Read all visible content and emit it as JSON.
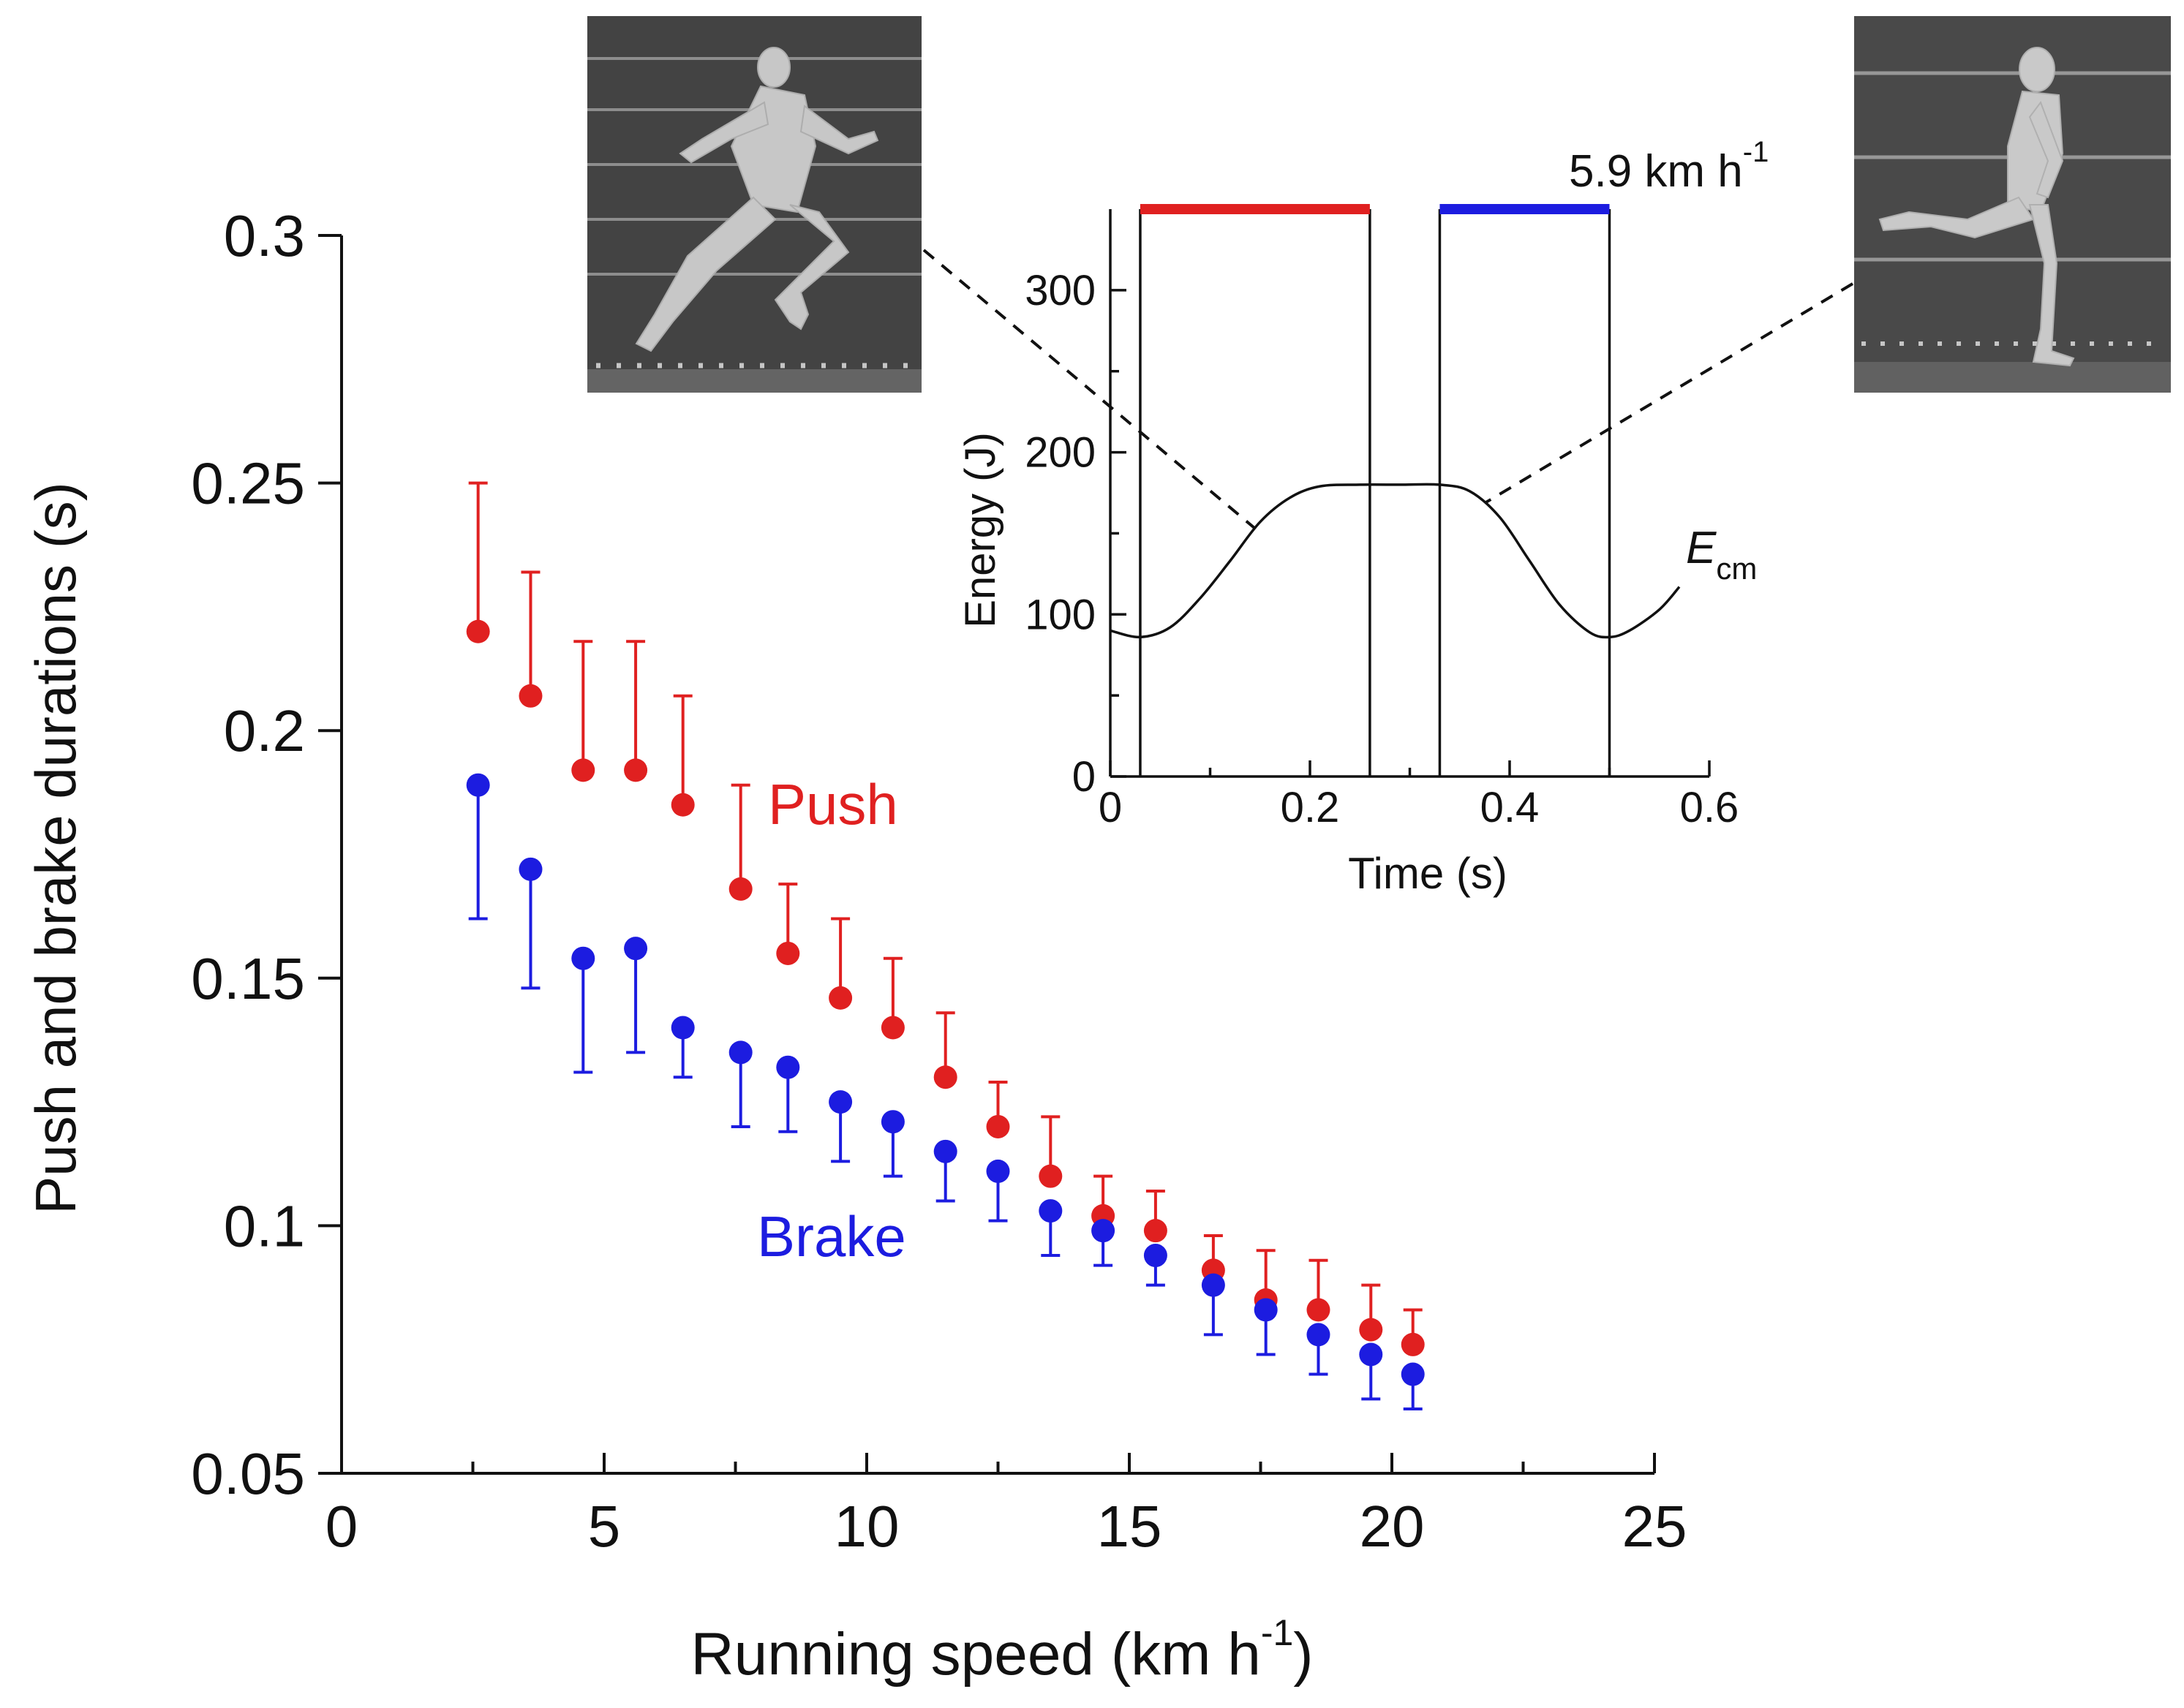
{
  "chart_data": [
    {
      "type": "scatter",
      "role": "main",
      "xlabel": "Running speed (km h",
      "xlabel_sup": "-1",
      "xlabel_close": ")",
      "ylabel": "Push and brake durations (s)",
      "xlim": [
        0,
        25
      ],
      "ylim": [
        0.05,
        0.3
      ],
      "xticks": [
        0,
        5,
        10,
        15,
        20,
        25
      ],
      "xtick_labels": [
        "0",
        "5",
        "10",
        "15",
        "20",
        "25"
      ],
      "yticks": [
        0.05,
        0.1,
        0.15,
        0.2,
        0.25,
        0.3
      ],
      "ytick_labels": [
        "0.05",
        "0.1",
        "0.15",
        "0.2",
        "0.25",
        "0.3"
      ],
      "x": [
        2.6,
        3.6,
        4.6,
        5.6,
        6.5,
        7.6,
        8.5,
        9.5,
        10.5,
        11.5,
        12.5,
        13.5,
        14.5,
        15.5,
        16.6,
        17.6,
        18.6,
        19.6,
        20.4
      ],
      "series": [
        {
          "name": "Push",
          "color": "#e02020",
          "error_direction": "up",
          "values": [
            0.22,
            0.207,
            0.192,
            0.192,
            0.185,
            0.168,
            0.155,
            0.146,
            0.14,
            0.13,
            0.12,
            0.11,
            0.102,
            0.099,
            0.091,
            0.085,
            0.083,
            0.079,
            0.076
          ],
          "errors": [
            0.03,
            0.025,
            0.026,
            0.026,
            0.022,
            0.021,
            0.014,
            0.016,
            0.014,
            0.013,
            0.009,
            0.012,
            0.008,
            0.008,
            0.007,
            0.01,
            0.01,
            0.009,
            0.007
          ]
        },
        {
          "name": "Brake",
          "color": "#1c1ce0",
          "error_direction": "down",
          "values": [
            0.189,
            0.172,
            0.154,
            0.156,
            0.14,
            0.135,
            0.132,
            0.125,
            0.121,
            0.115,
            0.111,
            0.103,
            0.099,
            0.094,
            0.088,
            0.083,
            0.078,
            0.074,
            0.07
          ],
          "errors": [
            0.027,
            0.024,
            0.023,
            0.021,
            0.01,
            0.015,
            0.013,
            0.012,
            0.011,
            0.01,
            0.01,
            0.009,
            0.007,
            0.006,
            0.01,
            0.009,
            0.008,
            0.009,
            0.007
          ]
        }
      ],
      "annotations": [
        {
          "text": "Push",
          "color": "#e02020"
        },
        {
          "text": "Brake",
          "color": "#1c1ce0"
        }
      ]
    },
    {
      "type": "line",
      "role": "inset",
      "title": "5.9 km h",
      "title_sup": "-1",
      "xlabel": "Time (s)",
      "ylabel": "Energy (J)",
      "xlim": [
        0,
        0.6
      ],
      "ylim": [
        0,
        350
      ],
      "xticks": [
        0,
        0.2,
        0.4,
        0.6
      ],
      "xtick_labels": [
        "0",
        "0.2",
        "0.4",
        "0.6"
      ],
      "yticks": [
        0,
        100,
        200,
        300
      ],
      "ytick_labels": [
        "0",
        "100",
        "200",
        "300"
      ],
      "series_label": "E",
      "series_label_sub": "cm",
      "curve": {
        "x": [
          0,
          0.03,
          0.06,
          0.09,
          0.12,
          0.15,
          0.18,
          0.21,
          0.25,
          0.29,
          0.33,
          0.36,
          0.39,
          0.42,
          0.45,
          0.48,
          0.5,
          0.52,
          0.55,
          0.57
        ],
        "y": [
          90,
          86,
          92,
          110,
          133,
          157,
          172,
          179,
          180,
          180,
          180,
          176,
          160,
          133,
          106,
          89,
          86,
          90,
          103,
          117
        ]
      },
      "push_interval": [
        0.03,
        0.26
      ],
      "brake_interval": [
        0.33,
        0.5
      ],
      "push_color": "#e02020",
      "brake_color": "#1c1ce0"
    }
  ],
  "photos": [
    {
      "name": "runner-push-off"
    },
    {
      "name": "runner-landing"
    }
  ]
}
